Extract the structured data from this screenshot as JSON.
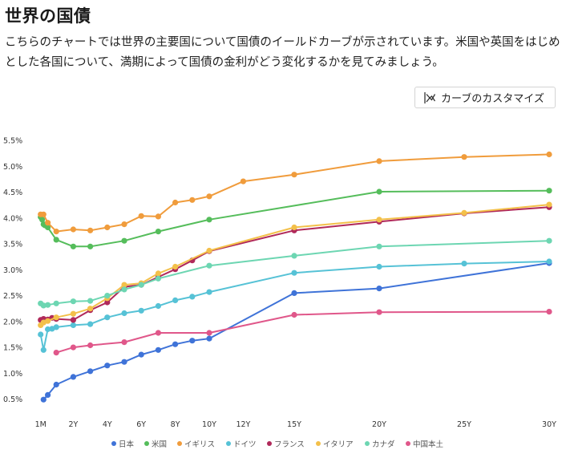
{
  "page": {
    "title": "世界の国債",
    "description": "こちらのチャートでは世界の主要国について国債のイールドカーブが示されています。米国や英国をはじめとした各国について、満期によって国債の金利がどう変化するかを見てみましょう。",
    "customize_label": "カーブのカスタマイズ"
  },
  "chart_data": {
    "type": "line",
    "title": "",
    "xlabel": "",
    "ylabel": "",
    "ylim": [
      0.3,
      5.6
    ],
    "yticks": [
      0.5,
      1.0,
      1.5,
      2.0,
      2.5,
      3.0,
      3.5,
      4.0,
      4.5,
      5.0,
      5.5
    ],
    "ytick_labels": [
      "0.5%",
      "1.0%",
      "1.5%",
      "2.0%",
      "2.5%",
      "3.0%",
      "3.5%",
      "4.0%",
      "4.5%",
      "5.0%",
      "5.5%"
    ],
    "xlim": [
      0,
      30
    ],
    "xticks": [
      {
        "label": "1M",
        "value": 0.08
      },
      {
        "label": "2Y",
        "value": 2
      },
      {
        "label": "4Y",
        "value": 4
      },
      {
        "label": "6Y",
        "value": 6
      },
      {
        "label": "8Y",
        "value": 8
      },
      {
        "label": "10Y",
        "value": 10
      },
      {
        "label": "12Y",
        "value": 12
      },
      {
        "label": "15Y",
        "value": 15
      },
      {
        "label": "20Y",
        "value": 20
      },
      {
        "label": "25Y",
        "value": 25
      },
      {
        "label": "30Y",
        "value": 30
      }
    ],
    "legend_position": "bottom",
    "series": [
      {
        "name": "日本",
        "color": "#3f73d8",
        "x": [
          0.25,
          0.5,
          1,
          2,
          3,
          4,
          5,
          6,
          7,
          8,
          9,
          10,
          15,
          20,
          30
        ],
        "y": [
          0.49,
          0.58,
          0.78,
          0.93,
          1.04,
          1.15,
          1.22,
          1.36,
          1.45,
          1.56,
          1.63,
          1.67,
          2.55,
          2.64,
          3.13
        ]
      },
      {
        "name": "米国",
        "color": "#55bd5b",
        "x": [
          0.08,
          0.17,
          0.25,
          0.33,
          0.5,
          1,
          2,
          3,
          5,
          7,
          10,
          20,
          30
        ],
        "y": [
          4.02,
          3.97,
          3.88,
          3.86,
          3.82,
          3.58,
          3.45,
          3.45,
          3.56,
          3.74,
          3.97,
          4.51,
          4.53
        ]
      },
      {
        "name": "イギリス",
        "color": "#f09c3c",
        "x": [
          0.08,
          0.25,
          0.5,
          1,
          2,
          3,
          4,
          5,
          6,
          7,
          8,
          9,
          10,
          12,
          15,
          20,
          25,
          30
        ],
        "y": [
          4.07,
          4.07,
          3.91,
          3.74,
          3.78,
          3.76,
          3.82,
          3.88,
          4.04,
          4.03,
          4.3,
          4.35,
          4.42,
          4.71,
          4.84,
          5.1,
          5.18,
          5.23
        ]
      },
      {
        "name": "ドイツ",
        "color": "#56c2d6",
        "x": [
          0.08,
          0.25,
          0.5,
          0.75,
          1,
          2,
          3,
          4,
          5,
          6,
          7,
          8,
          9,
          10,
          15,
          20,
          25,
          30
        ],
        "y": [
          1.75,
          1.45,
          1.85,
          1.86,
          1.89,
          1.93,
          1.95,
          2.08,
          2.16,
          2.21,
          2.3,
          2.41,
          2.48,
          2.57,
          2.94,
          3.06,
          3.12,
          3.16
        ]
      },
      {
        "name": "フランス",
        "color": "#b0295a",
        "x": [
          0.08,
          0.25,
          0.5,
          0.75,
          1,
          2,
          3,
          4,
          5,
          6,
          7,
          8,
          9,
          10,
          15,
          20,
          25,
          30
        ],
        "y": [
          2.03,
          2.05,
          2.04,
          2.07,
          2.05,
          2.03,
          2.22,
          2.37,
          2.67,
          2.71,
          2.86,
          3.01,
          3.18,
          3.36,
          3.76,
          3.93,
          4.09,
          4.21
        ]
      },
      {
        "name": "イタリア",
        "color": "#f3c04a",
        "x": [
          0.08,
          0.25,
          0.5,
          1,
          2,
          3,
          4,
          5,
          6,
          7,
          8,
          10,
          15,
          20,
          25,
          30
        ],
        "y": [
          1.93,
          1.98,
          2.01,
          2.08,
          2.15,
          2.25,
          2.45,
          2.71,
          2.74,
          2.93,
          3.06,
          3.37,
          3.82,
          3.97,
          4.1,
          4.26
        ]
      },
      {
        "name": "カナダ",
        "color": "#6dd6b2",
        "x": [
          0.08,
          0.25,
          0.5,
          1,
          2,
          3,
          4,
          5,
          6,
          7,
          10,
          15,
          20,
          30
        ],
        "y": [
          2.35,
          2.31,
          2.32,
          2.35,
          2.39,
          2.4,
          2.5,
          2.62,
          2.71,
          2.83,
          3.08,
          3.27,
          3.45,
          3.56
        ]
      },
      {
        "name": "中国本土",
        "color": "#e0578a",
        "x": [
          1,
          2,
          3,
          5,
          7,
          10,
          15,
          20,
          30
        ],
        "y": [
          1.4,
          1.5,
          1.54,
          1.6,
          1.78,
          1.78,
          2.13,
          2.18,
          2.19
        ]
      }
    ]
  }
}
